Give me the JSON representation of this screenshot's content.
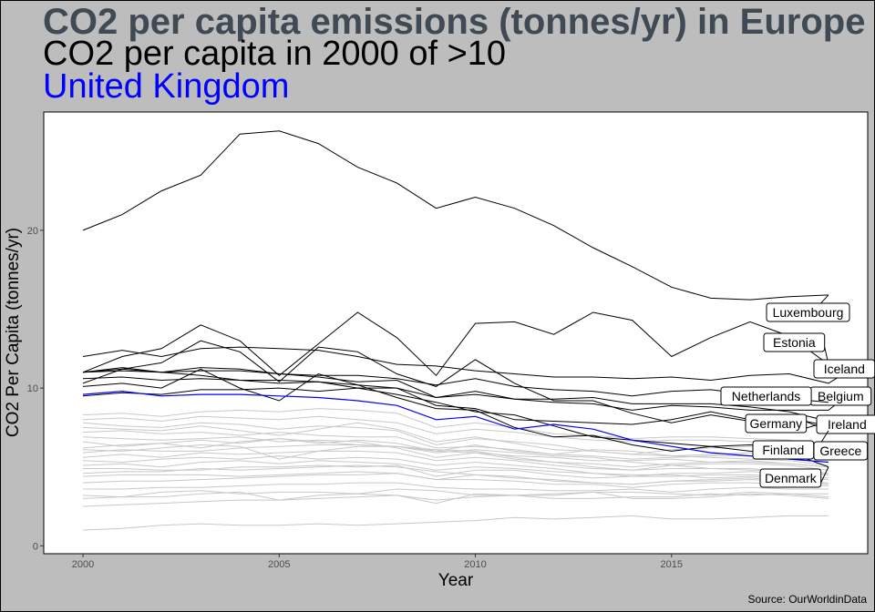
{
  "chart_data": {
    "type": "line",
    "title": "CO2 per capita emissions (tonnes/yr) in Europe",
    "subtitle": "CO2 per capita in 2000 of >10",
    "highlight_label": "United Kingdom",
    "xlabel": "Year",
    "ylabel": "CO2 Per Capita (tonnes/yr)",
    "caption": "Source: OurWorldinData",
    "xlim": [
      1999,
      2020
    ],
    "ylim": [
      -0.5,
      27.5
    ],
    "xticks": [
      2000,
      2005,
      2010,
      2015
    ],
    "yticks": [
      0,
      10,
      20
    ],
    "grid": false,
    "colors": {
      "background": "#bdbdbd",
      "panel": "#ffffff",
      "highlighted": "#0000ff",
      "labeled": "#000000",
      "other": "#c8c8c8"
    },
    "x": [
      2000,
      2001,
      2002,
      2003,
      2004,
      2005,
      2006,
      2007,
      2008,
      2009,
      2010,
      2011,
      2012,
      2013,
      2014,
      2015,
      2016,
      2017,
      2018,
      2019
    ],
    "series": [
      {
        "name": "Luxembourg",
        "label": true,
        "values": [
          20.0,
          21.0,
          22.5,
          23.5,
          26.1,
          26.3,
          25.5,
          24.0,
          23.0,
          21.4,
          22.1,
          21.4,
          20.3,
          18.9,
          17.7,
          16.4,
          15.7,
          15.6,
          15.8,
          15.9
        ]
      },
      {
        "name": "Estonia",
        "label": true,
        "values": [
          11.0,
          12.0,
          12.5,
          14.0,
          13.0,
          10.8,
          12.8,
          14.8,
          13.2,
          10.8,
          14.1,
          14.2,
          13.4,
          14.8,
          14.3,
          12.0,
          13.2,
          14.2,
          13.3,
          11.5
        ]
      },
      {
        "name": "Iceland",
        "label": true,
        "values": [
          12.0,
          12.4,
          12.0,
          12.5,
          12.6,
          12.5,
          12.4,
          12.0,
          11.5,
          11.4,
          11.1,
          10.9,
          10.7,
          10.7,
          10.6,
          10.7,
          10.5,
          10.8,
          10.9,
          10.3
        ]
      },
      {
        "name": "Belgium",
        "label": true,
        "values": [
          11.0,
          11.2,
          11.0,
          11.3,
          11.2,
          10.9,
          10.7,
          10.4,
          10.5,
          9.4,
          9.8,
          9.3,
          9.1,
          9.0,
          8.6,
          8.9,
          8.8,
          8.6,
          8.6,
          8.6
        ]
      },
      {
        "name": "Netherlands",
        "label": true,
        "values": [
          11.0,
          11.1,
          11.0,
          11.1,
          11.1,
          10.9,
          10.8,
          10.8,
          10.6,
          10.2,
          10.6,
          10.1,
          9.9,
          9.8,
          9.5,
          9.8,
          9.9,
          9.6,
          9.3,
          9.1
        ]
      },
      {
        "name": "Germany",
        "label": true,
        "values": [
          10.6,
          10.7,
          10.5,
          10.6,
          10.5,
          10.3,
          10.4,
          10.0,
          10.0,
          9.4,
          9.6,
          9.3,
          9.3,
          9.4,
          9.0,
          9.0,
          9.0,
          8.8,
          8.5,
          7.9
        ]
      },
      {
        "name": "Ireland",
        "label": true,
        "values": [
          11.0,
          11.3,
          11.0,
          10.8,
          10.5,
          10.5,
          10.4,
          10.2,
          10.0,
          8.9,
          8.7,
          8.0,
          7.9,
          7.8,
          7.7,
          8.0,
          8.5,
          8.0,
          8.1,
          7.6
        ]
      },
      {
        "name": "Finland",
        "label": true,
        "values": [
          10.3,
          11.2,
          11.6,
          13.0,
          12.3,
          10.4,
          12.6,
          12.3,
          10.9,
          10.1,
          11.8,
          10.3,
          9.2,
          9.2,
          8.4,
          7.8,
          8.3,
          7.9,
          8.3,
          7.3
        ]
      },
      {
        "name": "Greece",
        "label": true,
        "values": [
          9.5,
          9.7,
          9.6,
          9.9,
          9.9,
          10.0,
          9.8,
          10.0,
          9.6,
          9.1,
          8.5,
          8.3,
          7.6,
          6.9,
          6.7,
          6.5,
          6.3,
          6.4,
          6.2,
          5.8
        ]
      },
      {
        "name": "Denmark",
        "label": true,
        "values": [
          10.1,
          10.3,
          10.0,
          11.2,
          10.0,
          9.2,
          10.9,
          10.2,
          9.4,
          8.7,
          8.6,
          7.5,
          6.9,
          7.0,
          6.4,
          6.0,
          6.3,
          6.0,
          5.9,
          5.0
        ]
      },
      {
        "name": "United Kingdom",
        "label": false,
        "highlight": true,
        "values": [
          9.6,
          9.8,
          9.5,
          9.6,
          9.6,
          9.5,
          9.4,
          9.2,
          8.9,
          8.0,
          8.2,
          7.4,
          7.7,
          7.4,
          6.7,
          6.3,
          5.9,
          5.7,
          5.5,
          5.3
        ]
      },
      {
        "values": [
          8.3,
          8.4,
          8.2,
          8.5,
          8.6,
          8.5,
          8.7,
          8.6,
          8.4,
          7.5,
          7.8,
          7.5,
          7.1,
          7.0,
          6.8,
          6.9,
          6.9,
          6.8,
          6.7,
          6.3
        ]
      },
      {
        "values": [
          8.0,
          8.1,
          7.9,
          8.2,
          8.1,
          8.0,
          8.2,
          8.0,
          7.8,
          7.1,
          7.4,
          7.2,
          6.9,
          6.7,
          6.6,
          6.7,
          6.7,
          6.6,
          6.5,
          6.2
        ]
      },
      {
        "values": [
          7.8,
          7.6,
          7.5,
          7.8,
          7.7,
          7.4,
          7.6,
          7.5,
          7.3,
          6.4,
          6.8,
          6.6,
          6.4,
          6.0,
          5.8,
          5.7,
          5.6,
          5.5,
          5.4,
          5.1
        ]
      },
      {
        "values": [
          7.5,
          7.4,
          7.3,
          7.6,
          7.3,
          7.0,
          7.4,
          7.8,
          7.4,
          6.6,
          6.9,
          6.5,
          6.1,
          6.0,
          5.8,
          6.1,
          6.2,
          6.3,
          6.0,
          5.6
        ]
      },
      {
        "values": [
          7.2,
          7.3,
          7.1,
          7.2,
          7.0,
          7.2,
          7.0,
          6.9,
          6.9,
          6.2,
          6.3,
          6.1,
          5.8,
          5.7,
          5.5,
          5.6,
          5.7,
          5.7,
          5.5,
          5.3
        ]
      },
      {
        "values": [
          6.9,
          6.8,
          6.7,
          6.8,
          6.9,
          6.6,
          6.7,
          6.6,
          6.2,
          5.6,
          5.9,
          5.5,
          5.3,
          5.0,
          4.8,
          5.1,
          5.2,
          5.2,
          5.1,
          4.8
        ]
      },
      {
        "values": [
          6.6,
          6.3,
          6.5,
          6.7,
          6.5,
          6.8,
          6.6,
          6.4,
          6.3,
          5.9,
          6.1,
          5.9,
          5.7,
          5.6,
          5.3,
          5.1,
          4.9,
          4.9,
          4.7,
          4.5
        ]
      },
      {
        "values": [
          6.2,
          6.4,
          6.5,
          6.2,
          6.6,
          6.8,
          6.5,
          6.7,
          6.5,
          6.0,
          6.4,
          6.0,
          5.8,
          6.1,
          6.0,
          5.7,
          5.8,
          5.9,
          5.7,
          5.5
        ]
      },
      {
        "values": [
          6.1,
          6.0,
          6.2,
          6.4,
          6.3,
          5.5,
          6.0,
          6.3,
          6.3,
          6.0,
          5.9,
          5.7,
          5.6,
          5.4,
          5.4,
          5.5,
          5.3,
          5.4,
          5.2,
          5.0
        ]
      },
      {
        "values": [
          5.9,
          6.1,
          6.0,
          6.0,
          6.2,
          6.3,
          6.4,
          6.4,
          6.3,
          6.1,
          6.0,
          5.6,
          5.3,
          5.2,
          5.0,
          5.2,
          5.3,
          5.3,
          5.2,
          5.0
        ]
      },
      {
        "values": [
          5.6,
          5.8,
          5.6,
          5.9,
          5.8,
          5.9,
          6.0,
          6.0,
          5.9,
          5.4,
          5.6,
          5.4,
          5.1,
          4.9,
          4.8,
          4.9,
          4.9,
          4.8,
          4.8,
          4.6
        ]
      },
      {
        "values": [
          5.4,
          5.3,
          5.5,
          5.6,
          5.5,
          5.7,
          5.5,
          5.6,
          5.5,
          5.1,
          5.3,
          5.1,
          4.9,
          4.6,
          4.4,
          4.6,
          4.6,
          4.7,
          4.6,
          4.5
        ]
      },
      {
        "values": [
          5.1,
          5.2,
          5.0,
          5.3,
          5.4,
          5.2,
          5.4,
          5.3,
          5.2,
          4.8,
          5.0,
          4.9,
          4.7,
          4.6,
          4.5,
          4.5,
          4.3,
          4.4,
          4.3,
          4.2
        ]
      },
      {
        "values": [
          4.9,
          4.9,
          4.8,
          4.8,
          5.0,
          5.0,
          5.1,
          5.0,
          5.1,
          4.4,
          4.8,
          4.8,
          4.5,
          4.3,
          4.4,
          4.4,
          4.5,
          4.5,
          4.4,
          4.3
        ]
      },
      {
        "values": [
          4.6,
          4.7,
          4.7,
          4.9,
          4.8,
          4.9,
          5.0,
          5.1,
          5.0,
          4.7,
          4.5,
          4.3,
          4.2,
          4.0,
          3.9,
          4.1,
          4.2,
          4.3,
          4.1,
          4.0
        ]
      },
      {
        "values": [
          4.4,
          4.5,
          4.5,
          4.5,
          4.4,
          4.5,
          4.6,
          4.7,
          4.6,
          4.2,
          4.5,
          4.4,
          4.1,
          4.0,
          3.9,
          4.1,
          4.1,
          4.2,
          4.1,
          3.9
        ]
      },
      {
        "values": [
          4.0,
          4.1,
          4.1,
          4.2,
          4.3,
          4.4,
          4.5,
          4.5,
          4.6,
          4.2,
          4.2,
          4.1,
          3.9,
          3.9,
          3.7,
          3.9,
          4.0,
          4.0,
          3.9,
          3.8
        ]
      },
      {
        "values": [
          3.6,
          3.6,
          3.7,
          3.7,
          3.8,
          3.9,
          3.9,
          4.0,
          4.0,
          3.7,
          3.6,
          3.6,
          3.5,
          3.5,
          3.6,
          3.4,
          3.6,
          3.7,
          3.6,
          3.6
        ]
      },
      {
        "values": [
          3.2,
          3.1,
          3.4,
          3.5,
          3.3,
          3.4,
          3.4,
          3.3,
          3.6,
          3.5,
          3.2,
          3.2,
          3.3,
          3.4,
          3.4,
          3.3,
          3.2,
          3.4,
          3.3,
          3.3
        ]
      },
      {
        "values": [
          3.0,
          3.1,
          3.1,
          3.3,
          3.4,
          2.9,
          3.2,
          3.3,
          3.2,
          2.7,
          3.3,
          3.2,
          3.2,
          3.4,
          3.0,
          3.0,
          3.1,
          3.3,
          3.2,
          3.0
        ]
      },
      {
        "values": [
          2.5,
          2.6,
          2.7,
          2.8,
          2.9,
          2.9,
          3.0,
          3.1,
          3.2,
          2.9,
          3.1,
          3.2,
          3.0,
          3.0,
          3.1,
          3.1,
          3.3,
          3.2,
          3.3,
          3.1
        ]
      },
      {
        "values": [
          1.0,
          1.1,
          1.3,
          1.4,
          1.3,
          1.3,
          1.4,
          1.3,
          1.4,
          1.5,
          1.6,
          1.8,
          1.7,
          1.8,
          1.9,
          1.7,
          1.7,
          1.8,
          1.9,
          1.9
        ]
      }
    ]
  }
}
